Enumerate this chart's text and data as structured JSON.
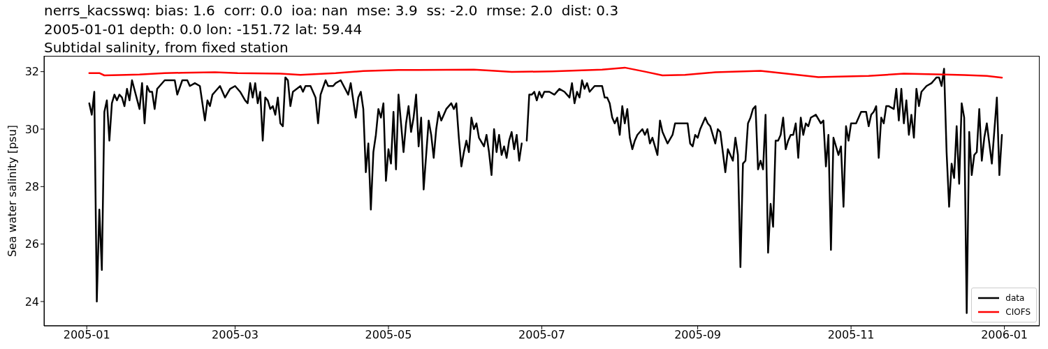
{
  "chart_data": {
    "type": "line",
    "title": "nerrs_kacsswq: bias: 1.6  corr: 0.0  ioa: nan  mse: 3.9  ss: -2.0  rmse: 2.0  dist: 0.3\n2005-01-01 depth: 0.0 lon: -151.72 lat: 59.44\nSubtidal salinity, from fixed station",
    "ylabel": "Sea water salinity [psu]",
    "series": [
      {
        "name": "data",
        "color": "#000000",
        "x": [
          "2005-01-02",
          "2005-01-03",
          "2005-01-04",
          "2005-01-05",
          "2005-01-06",
          "2005-01-07",
          "2005-01-08",
          "2005-01-09",
          "2005-01-10",
          "2005-01-11",
          "2005-01-12",
          "2005-01-13",
          "2005-01-14",
          "2005-01-15",
          "2005-01-16",
          "2005-01-17",
          "2005-01-18",
          "2005-01-19",
          "2005-01-22",
          "2005-01-23",
          "2005-01-24",
          "2005-01-25",
          "2005-01-26",
          "2005-01-27",
          "2005-01-28",
          "2005-01-29",
          "2005-01-30",
          "2005-02-01",
          "2005-02-04",
          "2005-02-05",
          "2005-02-06",
          "2005-02-08",
          "2005-02-10",
          "2005-02-11",
          "2005-02-13",
          "2005-02-15",
          "2005-02-17",
          "2005-02-18",
          "2005-02-19",
          "2005-02-20",
          "2005-02-21",
          "2005-02-23",
          "2005-02-24",
          "2005-02-25",
          "2005-02-27",
          "2005-03-01",
          "2005-03-03",
          "2005-03-05",
          "2005-03-06",
          "2005-03-07",
          "2005-03-08",
          "2005-03-09",
          "2005-03-10",
          "2005-03-11",
          "2005-03-12",
          "2005-03-13",
          "2005-03-14",
          "2005-03-15",
          "2005-03-16",
          "2005-03-17",
          "2005-03-18",
          "2005-03-19",
          "2005-03-20",
          "2005-03-21",
          "2005-03-22",
          "2005-03-23",
          "2005-03-24",
          "2005-03-27",
          "2005-03-28",
          "2005-03-29",
          "2005-03-31",
          "2005-04-02",
          "2005-04-03",
          "2005-04-04",
          "2005-04-06",
          "2005-04-07",
          "2005-04-09",
          "2005-04-10",
          "2005-04-12",
          "2005-04-15",
          "2005-04-16",
          "2005-04-18",
          "2005-04-19",
          "2005-04-20",
          "2005-04-21",
          "2005-04-22",
          "2005-04-23",
          "2005-04-24",
          "2005-04-25",
          "2005-04-26",
          "2005-04-27",
          "2005-04-28",
          "2005-04-29",
          "2005-04-30",
          "2005-05-01",
          "2005-05-02",
          "2005-05-03",
          "2005-05-04",
          "2005-05-05",
          "2005-05-07",
          "2005-05-08",
          "2005-05-09",
          "2005-05-10",
          "2005-05-11",
          "2005-05-12",
          "2005-05-13",
          "2005-05-14",
          "2005-05-15",
          "2005-05-17",
          "2005-05-18",
          "2005-05-19",
          "2005-05-20",
          "2005-05-21",
          "2005-05-22",
          "2005-05-24",
          "2005-05-26",
          "2005-05-27",
          "2005-05-28",
          "2005-05-29",
          "2005-05-30",
          "2005-05-31",
          "2005-06-01",
          "2005-06-02",
          "2005-06-03",
          "2005-06-04",
          "2005-06-05",
          "2005-06-06",
          "2005-06-08",
          "2005-06-09",
          "2005-06-10",
          "2005-06-11",
          "2005-06-12",
          "2005-06-13",
          "2005-06-14",
          "2005-06-15",
          "2005-06-16",
          "2005-06-17",
          "2005-06-18",
          "2005-06-19",
          "2005-06-20",
          "2005-06-21",
          "2005-06-22",
          "2005-06-23",
          "2005-06-24",
          "2005-06-25",
          "2005-06-26",
          "2005-06-27",
          "2005-06-28",
          "2005-06-29",
          "2005-06-30",
          "2005-07-01",
          "2005-07-02",
          "2005-07-04",
          "2005-07-06",
          "2005-07-08",
          "2005-07-10",
          "2005-07-12",
          "2005-07-13",
          "2005-07-14",
          "2005-07-15",
          "2005-07-16",
          "2005-07-17",
          "2005-07-18",
          "2005-07-19",
          "2005-07-20",
          "2005-07-22",
          "2005-07-23",
          "2005-07-25",
          "2005-07-26",
          "2005-07-27",
          "2005-07-28",
          "2005-07-29",
          "2005-07-30",
          "2005-07-31",
          "2005-08-01",
          "2005-08-02",
          "2005-08-03",
          "2005-08-04",
          "2005-08-05",
          "2005-08-06",
          "2005-08-07",
          "2005-08-08",
          "2005-08-10",
          "2005-08-11",
          "2005-08-12",
          "2005-08-13",
          "2005-08-14",
          "2005-08-16",
          "2005-08-17",
          "2005-08-18",
          "2005-08-20",
          "2005-08-22",
          "2005-08-23",
          "2005-08-25",
          "2005-08-28",
          "2005-08-29",
          "2005-08-30",
          "2005-08-31",
          "2005-09-01",
          "2005-09-02",
          "2005-09-04",
          "2005-09-05",
          "2005-09-06",
          "2005-09-08",
          "2005-09-09",
          "2005-09-10",
          "2005-09-12",
          "2005-09-13",
          "2005-09-14",
          "2005-09-15",
          "2005-09-16",
          "2005-09-17",
          "2005-09-18",
          "2005-09-19",
          "2005-09-20",
          "2005-09-21",
          "2005-09-22",
          "2005-09-23",
          "2005-09-24",
          "2005-09-25",
          "2005-09-26",
          "2005-09-27",
          "2005-09-28",
          "2005-09-29",
          "2005-09-30",
          "2005-10-01",
          "2005-10-02",
          "2005-10-03",
          "2005-10-04",
          "2005-10-05",
          "2005-10-06",
          "2005-10-07",
          "2005-10-08",
          "2005-10-09",
          "2005-10-10",
          "2005-10-11",
          "2005-10-12",
          "2005-10-13",
          "2005-10-14",
          "2005-10-15",
          "2005-10-16",
          "2005-10-18",
          "2005-10-20",
          "2005-10-21",
          "2005-10-22",
          "2005-10-23",
          "2005-10-24",
          "2005-10-25",
          "2005-10-26",
          "2005-10-27",
          "2005-10-28",
          "2005-10-29",
          "2005-10-30",
          "2005-10-31",
          "2005-11-01",
          "2005-11-03",
          "2005-11-05",
          "2005-11-07",
          "2005-11-08",
          "2005-11-09",
          "2005-11-10",
          "2005-11-11",
          "2005-11-12",
          "2005-11-13",
          "2005-11-14",
          "2005-11-15",
          "2005-11-16",
          "2005-11-18",
          "2005-11-19",
          "2005-11-20",
          "2005-11-21",
          "2005-11-22",
          "2005-11-23",
          "2005-11-24",
          "2005-11-25",
          "2005-11-26",
          "2005-11-27",
          "2005-11-28",
          "2005-11-29",
          "2005-12-01",
          "2005-12-03",
          "2005-12-04",
          "2005-12-05",
          "2005-12-06",
          "2005-12-07",
          "2005-12-08",
          "2005-12-09",
          "2005-12-10",
          "2005-12-11",
          "2005-12-12",
          "2005-12-13",
          "2005-12-14",
          "2005-12-15",
          "2005-12-16",
          "2005-12-17",
          "2005-12-18",
          "2005-12-19",
          "2005-12-20",
          "2005-12-21",
          "2005-12-22",
          "2005-12-23",
          "2005-12-24",
          "2005-12-25",
          "2005-12-26",
          "2005-12-27",
          "2005-12-29",
          "2005-12-30",
          "2005-12-31"
        ],
        "values": [
          30.9,
          30.5,
          31.3,
          24.0,
          27.2,
          25.1,
          30.6,
          31.0,
          29.6,
          30.9,
          31.2,
          31.0,
          31.2,
          31.1,
          30.8,
          31.4,
          31.0,
          31.7,
          30.7,
          31.6,
          30.2,
          31.5,
          31.3,
          31.3,
          30.7,
          31.4,
          31.5,
          31.7,
          31.7,
          31.7,
          31.2,
          31.7,
          31.7,
          31.5,
          31.6,
          31.5,
          30.3,
          31.0,
          30.8,
          31.2,
          31.3,
          31.5,
          31.3,
          31.1,
          31.4,
          31.5,
          31.3,
          31.0,
          30.9,
          31.6,
          31.1,
          31.6,
          30.9,
          31.3,
          29.6,
          31.1,
          31.0,
          30.7,
          30.8,
          30.5,
          31.1,
          30.2,
          30.1,
          31.8,
          31.7,
          30.8,
          31.3,
          31.5,
          31.3,
          31.5,
          31.5,
          31.1,
          30.2,
          31.2,
          31.7,
          31.5,
          31.5,
          31.6,
          31.7,
          31.2,
          31.6,
          30.4,
          31.1,
          31.3,
          30.7,
          28.5,
          29.5,
          27.2,
          29.2,
          29.8,
          30.7,
          30.4,
          30.9,
          28.2,
          29.3,
          28.8,
          30.6,
          28.6,
          31.2,
          29.2,
          30.2,
          30.8,
          29.9,
          30.4,
          31.2,
          29.4,
          30.4,
          27.9,
          30.3,
          29.8,
          29.0,
          30.0,
          30.6,
          30.3,
          30.7,
          30.9,
          30.7,
          30.9,
          29.7,
          28.7,
          29.2,
          29.6,
          29.2,
          30.4,
          30.0,
          30.2,
          29.7,
          29.4,
          29.8,
          29.2,
          28.4,
          30.0,
          29.2,
          29.8,
          29.1,
          29.4,
          29.0,
          29.6,
          29.9,
          29.3,
          29.8,
          28.9,
          29.5,
          null,
          29.6,
          31.2,
          31.2,
          31.3,
          31.0,
          31.3,
          31.1,
          31.3,
          31.3,
          31.2,
          31.4,
          31.3,
          31.1,
          31.6,
          30.9,
          31.3,
          31.1,
          31.7,
          31.4,
          31.6,
          31.3,
          31.5,
          31.5,
          31.5,
          31.1,
          31.1,
          30.9,
          30.4,
          30.2,
          30.4,
          29.8,
          30.8,
          30.2,
          30.7,
          29.7,
          29.3,
          29.6,
          29.8,
          30.0,
          29.8,
          30.0,
          29.5,
          29.7,
          29.1,
          30.3,
          29.9,
          29.5,
          29.8,
          30.2,
          30.2,
          30.2,
          29.5,
          29.4,
          29.8,
          29.7,
          30.0,
          30.4,
          30.2,
          30.1,
          29.5,
          30.0,
          29.9,
          28.5,
          29.3,
          29.1,
          28.9,
          29.7,
          29.1,
          25.2,
          28.8,
          28.9,
          30.2,
          30.4,
          30.7,
          30.8,
          28.6,
          28.9,
          28.6,
          30.5,
          25.7,
          27.4,
          26.6,
          29.6,
          29.6,
          29.8,
          30.4,
          29.3,
          29.6,
          29.8,
          29.8,
          30.2,
          29.0,
          30.4,
          29.8,
          30.2,
          30.1,
          30.4,
          30.5,
          30.2,
          30.3,
          28.7,
          29.8,
          25.8,
          29.7,
          29.4,
          29.1,
          29.4,
          27.3,
          30.1,
          29.6,
          30.2,
          30.2,
          30.6,
          30.6,
          30.1,
          30.5,
          30.6,
          30.8,
          29.0,
          30.4,
          30.2,
          30.8,
          30.8,
          30.7,
          31.4,
          30.3,
          31.4,
          30.2,
          31.0,
          29.8,
          30.5,
          29.7,
          31.4,
          30.8,
          31.3,
          31.5,
          31.6,
          31.7,
          31.8,
          31.8,
          31.5,
          32.1,
          29.2,
          27.3,
          28.8,
          28.3,
          30.1,
          28.1,
          30.9,
          30.4,
          23.6,
          29.9,
          28.4,
          29.1,
          29.2,
          30.7,
          28.9,
          29.7,
          30.2,
          29.5,
          28.8,
          31.1,
          28.4,
          29.8
        ]
      },
      {
        "name": "CIOFS",
        "color": "#ff0000",
        "x": [
          "2005-01-02",
          "2005-01-06",
          "2005-01-08",
          "2005-01-14",
          "2005-01-22",
          "2005-02-01",
          "2005-02-08",
          "2005-02-21",
          "2005-03-02",
          "2005-03-19",
          "2005-03-27",
          "2005-04-10",
          "2005-04-21",
          "2005-05-05",
          "2005-05-13",
          "2005-06-04",
          "2005-06-10",
          "2005-06-19",
          "2005-07-05",
          "2005-07-25",
          "2005-08-03",
          "2005-08-11",
          "2005-08-18",
          "2005-08-27",
          "2005-09-08",
          "2005-09-26",
          "2005-10-05",
          "2005-10-19",
          "2005-10-27",
          "2005-11-08",
          "2005-11-22",
          "2005-12-08",
          "2005-12-16",
          "2005-12-25",
          "2005-12-31"
        ],
        "values": [
          31.95,
          31.95,
          31.87,
          31.88,
          31.9,
          31.95,
          31.96,
          31.98,
          31.95,
          31.93,
          31.89,
          31.95,
          32.02,
          32.06,
          32.06,
          32.07,
          32.04,
          31.99,
          32.01,
          32.07,
          32.14,
          32.0,
          31.87,
          31.89,
          31.98,
          32.03,
          31.94,
          31.81,
          31.83,
          31.85,
          31.93,
          31.9,
          31.88,
          31.85,
          31.79
        ]
      }
    ],
    "xlim": [
      "2004-12-15",
      "2006-01-15"
    ],
    "xticks": [
      "2005-01",
      "2005-03",
      "2005-05",
      "2005-07",
      "2005-09",
      "2005-11",
      "2006-01"
    ],
    "ylim": [
      23.15,
      32.55
    ],
    "yticks": [
      24,
      26,
      28,
      30,
      32
    ],
    "legend": "lower right",
    "marker": "none",
    "line_style": "solid",
    "grid": false
  }
}
